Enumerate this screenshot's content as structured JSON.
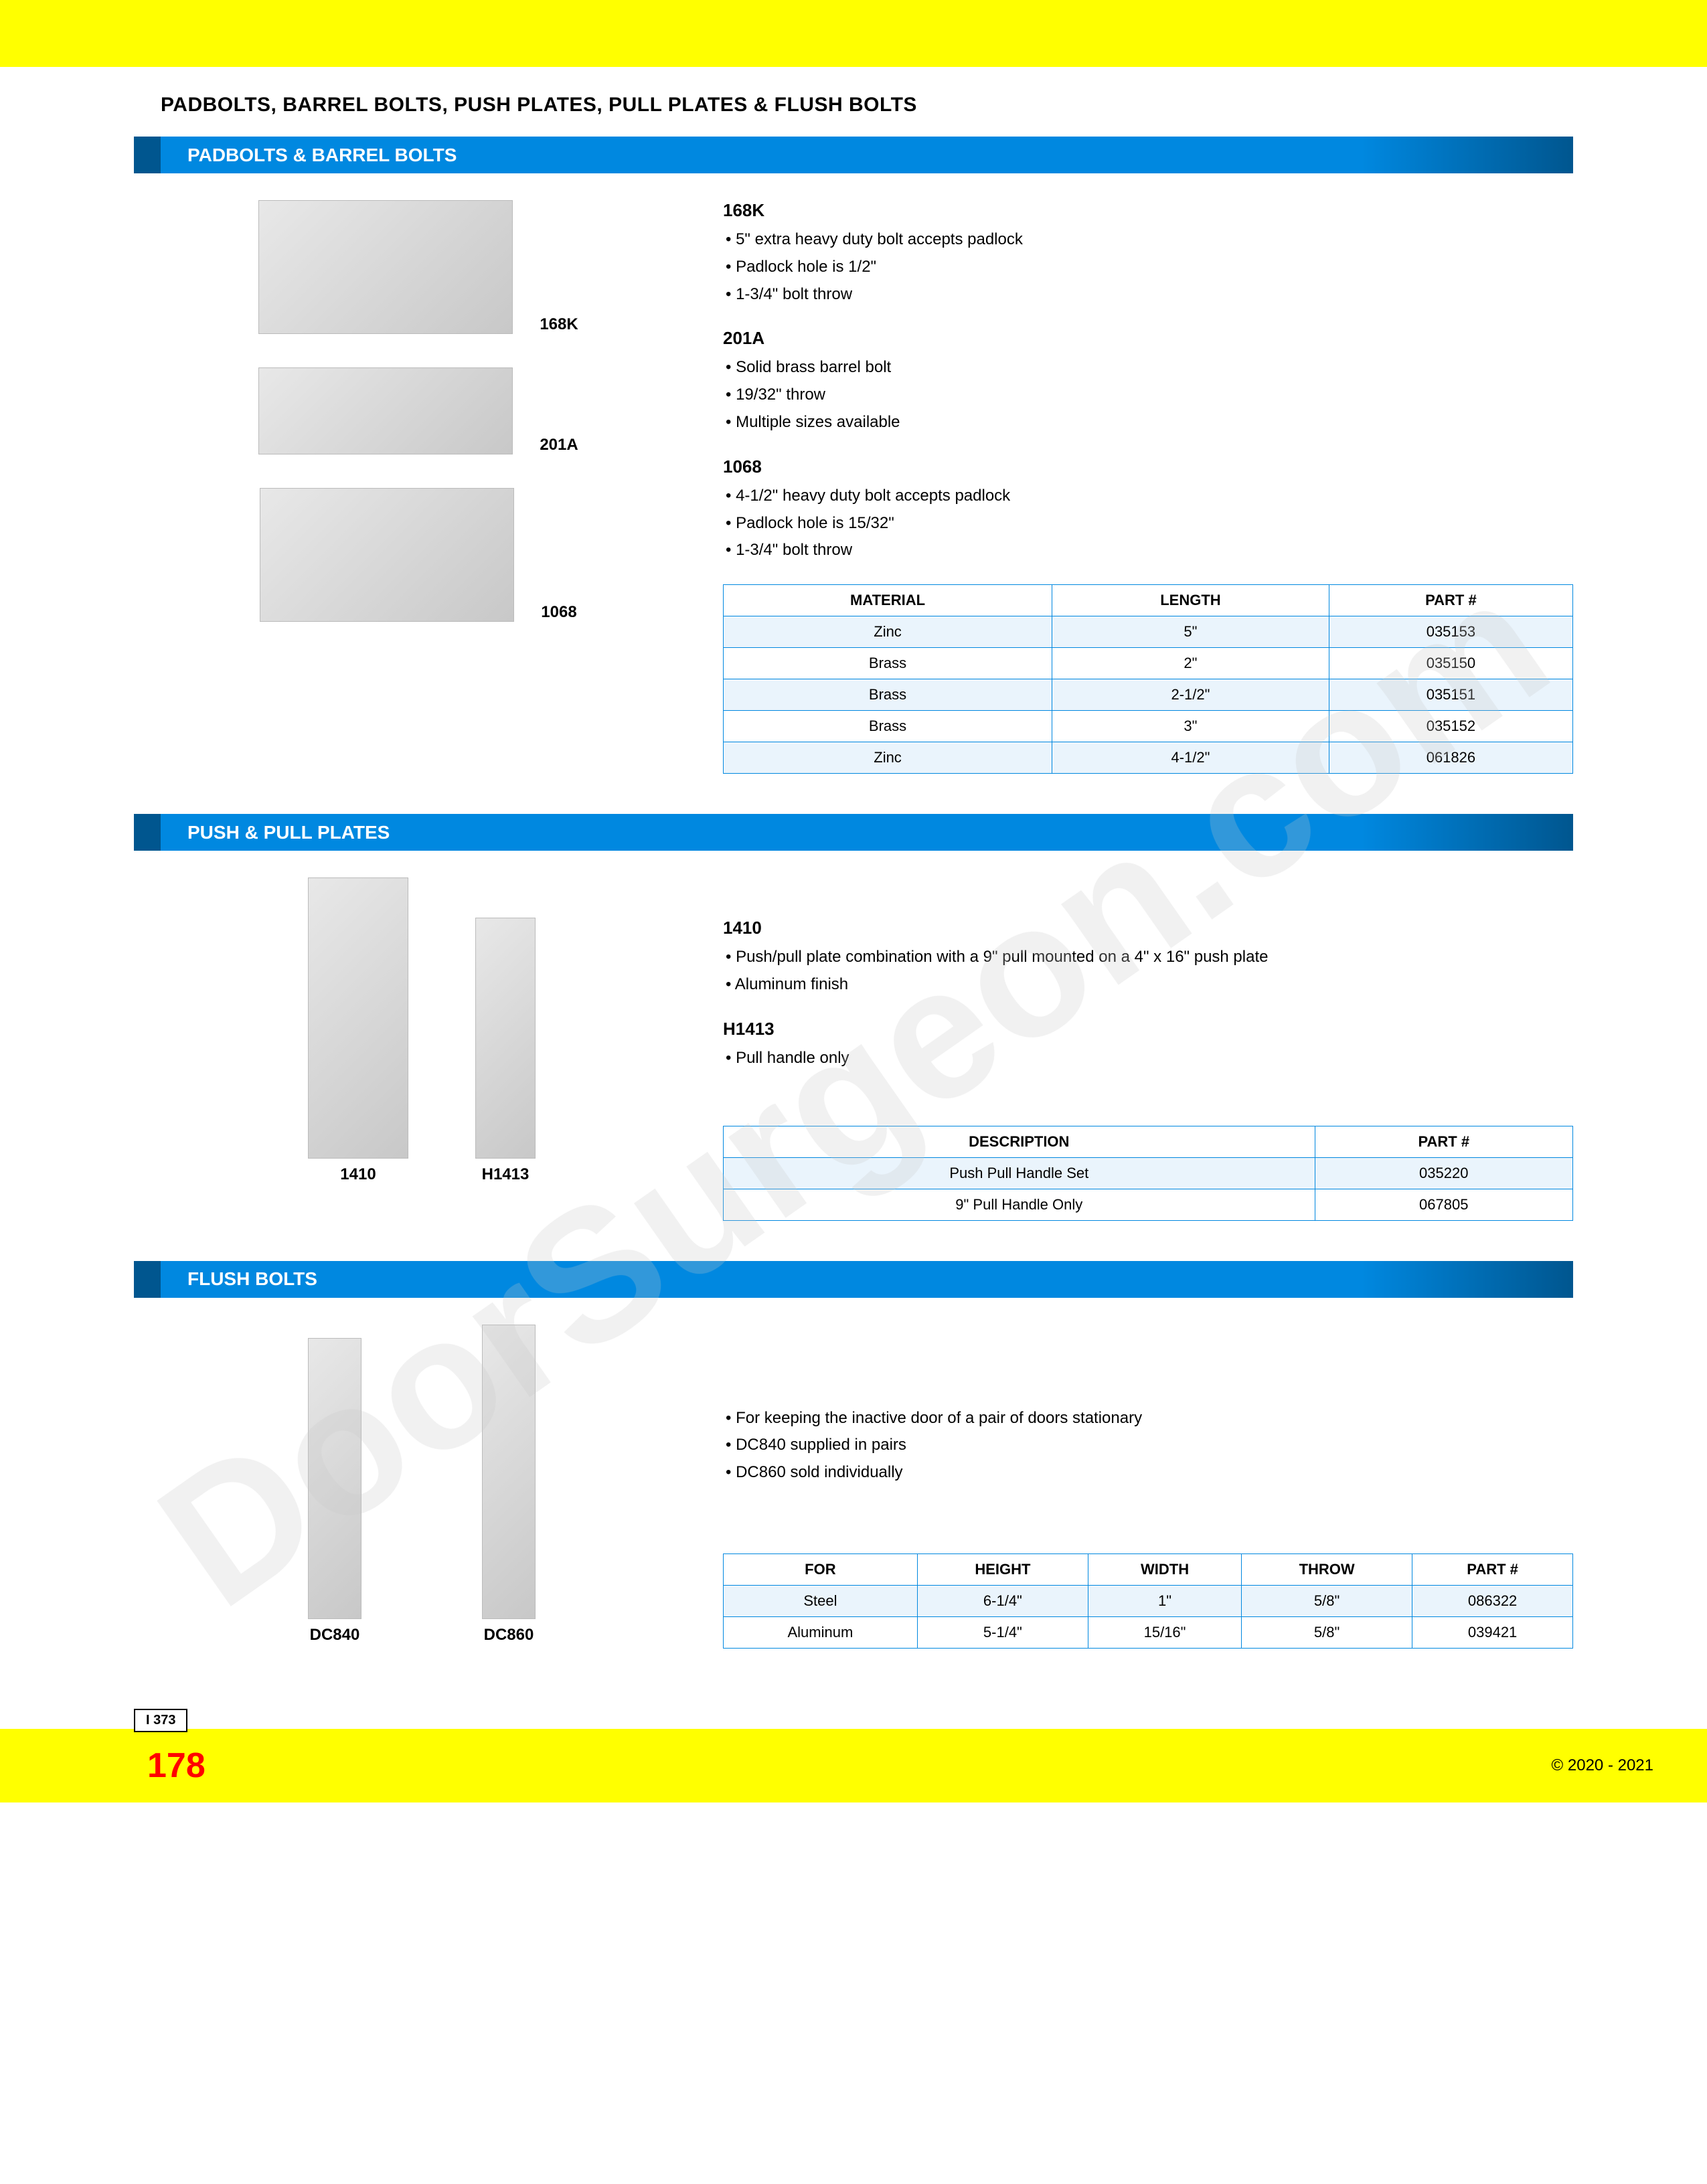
{
  "colors": {
    "yellow": "#ffff00",
    "blue": "#0088e0",
    "blue_dark": "#00568f",
    "red": "#ff0000",
    "table_row_blue": "#eaf4fc"
  },
  "watermark": "DoorSurgeon.com",
  "page_title": "PADBOLTS, BARREL BOLTS, PUSH PLATES, PULL PLATES & FLUSH BOLTS",
  "section1": {
    "title": "PADBOLTS & BARREL BOLTS",
    "products": [
      {
        "label": "168K"
      },
      {
        "label": "201A"
      },
      {
        "label": "1068"
      }
    ],
    "specs": [
      {
        "title": "168K",
        "items": [
          "5\" extra heavy duty bolt accepts padlock",
          "Padlock hole is 1/2\"",
          "1-3/4\" bolt throw"
        ]
      },
      {
        "title": "201A",
        "items": [
          "Solid brass barrel bolt",
          "19/32\" throw",
          "Multiple sizes available"
        ]
      },
      {
        "title": "1068",
        "items": [
          "4-1/2\" heavy duty bolt accepts padlock",
          "Padlock hole is 15/32\"",
          "1-3/4\" bolt throw"
        ]
      }
    ],
    "table": {
      "columns": [
        "MATERIAL",
        "LENGTH",
        "PART #"
      ],
      "rows": [
        [
          "Zinc",
          "5\"",
          "035153"
        ],
        [
          "Brass",
          "2\"",
          "035150"
        ],
        [
          "Brass",
          "2-1/2\"",
          "035151"
        ],
        [
          "Brass",
          "3\"",
          "035152"
        ],
        [
          "Zinc",
          "4-1/2\"",
          "061826"
        ]
      ]
    }
  },
  "section2": {
    "title": "PUSH & PULL PLATES",
    "products": [
      {
        "label": "1410"
      },
      {
        "label": "H1413"
      }
    ],
    "specs": [
      {
        "title": "1410",
        "items": [
          "Push/pull plate combination with a 9\" pull mounted on a 4\" x 16\" push plate",
          "Aluminum finish"
        ]
      },
      {
        "title": "H1413",
        "items": [
          "Pull handle only"
        ]
      }
    ],
    "table": {
      "columns": [
        "DESCRIPTION",
        "PART #"
      ],
      "rows": [
        [
          "Push Pull Handle Set",
          "035220"
        ],
        [
          "9\" Pull Handle Only",
          "067805"
        ]
      ]
    }
  },
  "section3": {
    "title": "FLUSH BOLTS",
    "products": [
      {
        "label": "DC840"
      },
      {
        "label": "DC860"
      }
    ],
    "specs": [
      {
        "title": "",
        "items": [
          "For keeping the inactive door of a pair of doors stationary",
          "DC840 supplied in pairs",
          "DC860 sold individually"
        ]
      }
    ],
    "table": {
      "columns": [
        "FOR",
        "HEIGHT",
        "WIDTH",
        "THROW",
        "PART #"
      ],
      "rows": [
        [
          "Steel",
          "6-1/4\"",
          "1\"",
          "5/8\"",
          "086322"
        ],
        [
          "Aluminum",
          "5-1/4\"",
          "15/16\"",
          "5/8\"",
          "039421"
        ]
      ]
    }
  },
  "footer": {
    "tab": "I 373",
    "page_number": "178",
    "copyright": "© 2020 - 2021"
  }
}
